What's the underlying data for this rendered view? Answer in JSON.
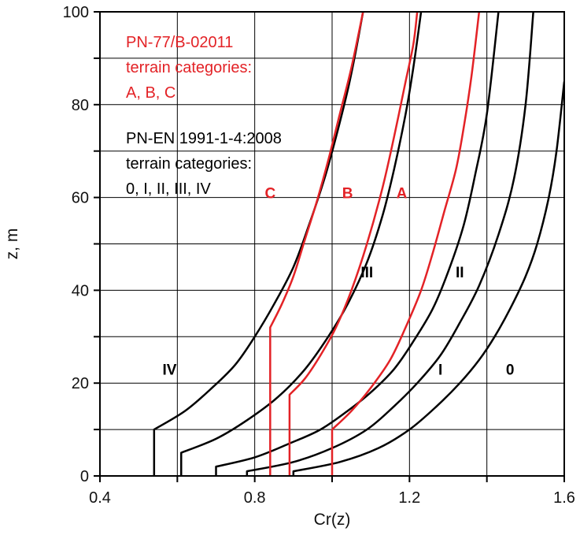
{
  "chart_data": {
    "type": "line",
    "title": "",
    "xlabel": "Cr(z)",
    "ylabel": "z, m",
    "xlim": [
      0.4,
      1.6
    ],
    "ylim": [
      0,
      100
    ],
    "xticks": [
      "0.4",
      "0.8",
      "1.2",
      "1.6"
    ],
    "yticks": [
      "0",
      "20",
      "40",
      "60",
      "80",
      "100"
    ],
    "grid": true,
    "colors": {
      "pn_en": "#000000",
      "pn_77": "#e32226"
    },
    "annotations": {
      "red_block": [
        "PN-77/B-02011",
        "terrain categories:",
        "A, B, C"
      ],
      "black_block": [
        "PN-EN 1991-1-4:2008",
        "terrain categories:",
        "0, I, II, III, IV"
      ]
    },
    "series": [
      {
        "name": "0",
        "standard": "PN-EN 1991-1-4:2008",
        "color": "#000000",
        "label_at": [
          1.46,
          23
        ],
        "points": [
          [
            0.9,
            0
          ],
          [
            0.9,
            1
          ],
          [
            1.02,
            3
          ],
          [
            1.12,
            6
          ],
          [
            1.2,
            10
          ],
          [
            1.27,
            15
          ],
          [
            1.33,
            20
          ],
          [
            1.38,
            25
          ],
          [
            1.42,
            30
          ],
          [
            1.46,
            36
          ],
          [
            1.5,
            43
          ],
          [
            1.53,
            50
          ],
          [
            1.56,
            60
          ],
          [
            1.58,
            70
          ],
          [
            1.6,
            85
          ]
        ]
      },
      {
        "name": "I",
        "standard": "PN-EN 1991-1-4:2008",
        "color": "#000000",
        "label_at": [
          1.28,
          23
        ],
        "points": [
          [
            0.78,
            0
          ],
          [
            0.78,
            1
          ],
          [
            0.9,
            3
          ],
          [
            1.0,
            6
          ],
          [
            1.09,
            10
          ],
          [
            1.16,
            15
          ],
          [
            1.22,
            20
          ],
          [
            1.28,
            26
          ],
          [
            1.33,
            33
          ],
          [
            1.38,
            41
          ],
          [
            1.43,
            52
          ],
          [
            1.47,
            64
          ],
          [
            1.5,
            80
          ],
          [
            1.52,
            100
          ]
        ]
      },
      {
        "name": "II",
        "standard": "PN-EN 1991-1-4:2008",
        "color": "#000000",
        "label_at": [
          1.33,
          44
        ],
        "points": [
          [
            0.7,
            0
          ],
          [
            0.7,
            2
          ],
          [
            0.8,
            4
          ],
          [
            0.89,
            7
          ],
          [
            0.97,
            10
          ],
          [
            1.04,
            14
          ],
          [
            1.1,
            18
          ],
          [
            1.16,
            23
          ],
          [
            1.21,
            29
          ],
          [
            1.26,
            36
          ],
          [
            1.3,
            44
          ],
          [
            1.34,
            54
          ],
          [
            1.37,
            65
          ],
          [
            1.4,
            78
          ],
          [
            1.43,
            100
          ]
        ]
      },
      {
        "name": "III",
        "standard": "PN-EN 1991-1-4:2008",
        "color": "#000000",
        "label_at": [
          1.09,
          44
        ],
        "points": [
          [
            0.61,
            0
          ],
          [
            0.61,
            5
          ],
          [
            0.7,
            8
          ],
          [
            0.78,
            12
          ],
          [
            0.86,
            17
          ],
          [
            0.93,
            23
          ],
          [
            0.99,
            30
          ],
          [
            1.04,
            37
          ],
          [
            1.09,
            46
          ],
          [
            1.13,
            56
          ],
          [
            1.16,
            66
          ],
          [
            1.19,
            78
          ],
          [
            1.21,
            88
          ],
          [
            1.23,
            100
          ]
        ]
      },
      {
        "name": "IV",
        "standard": "PN-EN 1991-1-4:2008",
        "color": "#000000",
        "label_at": [
          0.58,
          23
        ],
        "points": [
          [
            0.54,
            0
          ],
          [
            0.54,
            10
          ],
          [
            0.62,
            14
          ],
          [
            0.69,
            19
          ],
          [
            0.75,
            24
          ],
          [
            0.8,
            30
          ],
          [
            0.85,
            37
          ],
          [
            0.9,
            45
          ],
          [
            0.94,
            54
          ],
          [
            0.98,
            64
          ],
          [
            1.01,
            73
          ],
          [
            1.04,
            83
          ],
          [
            1.06,
            91
          ],
          [
            1.08,
            100
          ]
        ]
      },
      {
        "name": "A",
        "standard": "PN-77/B-02011",
        "color": "#e32226",
        "label_at": [
          1.18,
          61
        ],
        "points": [
          [
            1.0,
            0
          ],
          [
            1.0,
            10
          ],
          [
            1.05,
            14
          ],
          [
            1.1,
            19
          ],
          [
            1.15,
            25
          ],
          [
            1.19,
            32
          ],
          [
            1.23,
            40
          ],
          [
            1.26,
            48
          ],
          [
            1.29,
            57
          ],
          [
            1.32,
            66
          ],
          [
            1.34,
            75
          ],
          [
            1.36,
            86
          ],
          [
            1.38,
            100
          ]
        ]
      },
      {
        "name": "B",
        "standard": "PN-77/B-02011",
        "color": "#e32226",
        "label_at": [
          1.04,
          61
        ],
        "points": [
          [
            0.89,
            0
          ],
          [
            0.89,
            17.5
          ],
          [
            0.93,
            21
          ],
          [
            0.97,
            26
          ],
          [
            1.01,
            32
          ],
          [
            1.05,
            40
          ],
          [
            1.09,
            50
          ],
          [
            1.13,
            62
          ],
          [
            1.16,
            73
          ],
          [
            1.19,
            85
          ],
          [
            1.21,
            93
          ],
          [
            1.22,
            100
          ]
        ]
      },
      {
        "name": "C",
        "standard": "PN-77/B-02011",
        "color": "#e32226",
        "label_at": [
          0.84,
          61
        ],
        "points": [
          [
            0.84,
            0
          ],
          [
            0.84,
            32
          ],
          [
            0.87,
            37
          ],
          [
            0.9,
            43
          ],
          [
            0.93,
            51
          ],
          [
            0.96,
            59
          ],
          [
            0.99,
            68
          ],
          [
            1.02,
            78
          ],
          [
            1.05,
            88
          ],
          [
            1.08,
            100
          ]
        ]
      }
    ]
  }
}
